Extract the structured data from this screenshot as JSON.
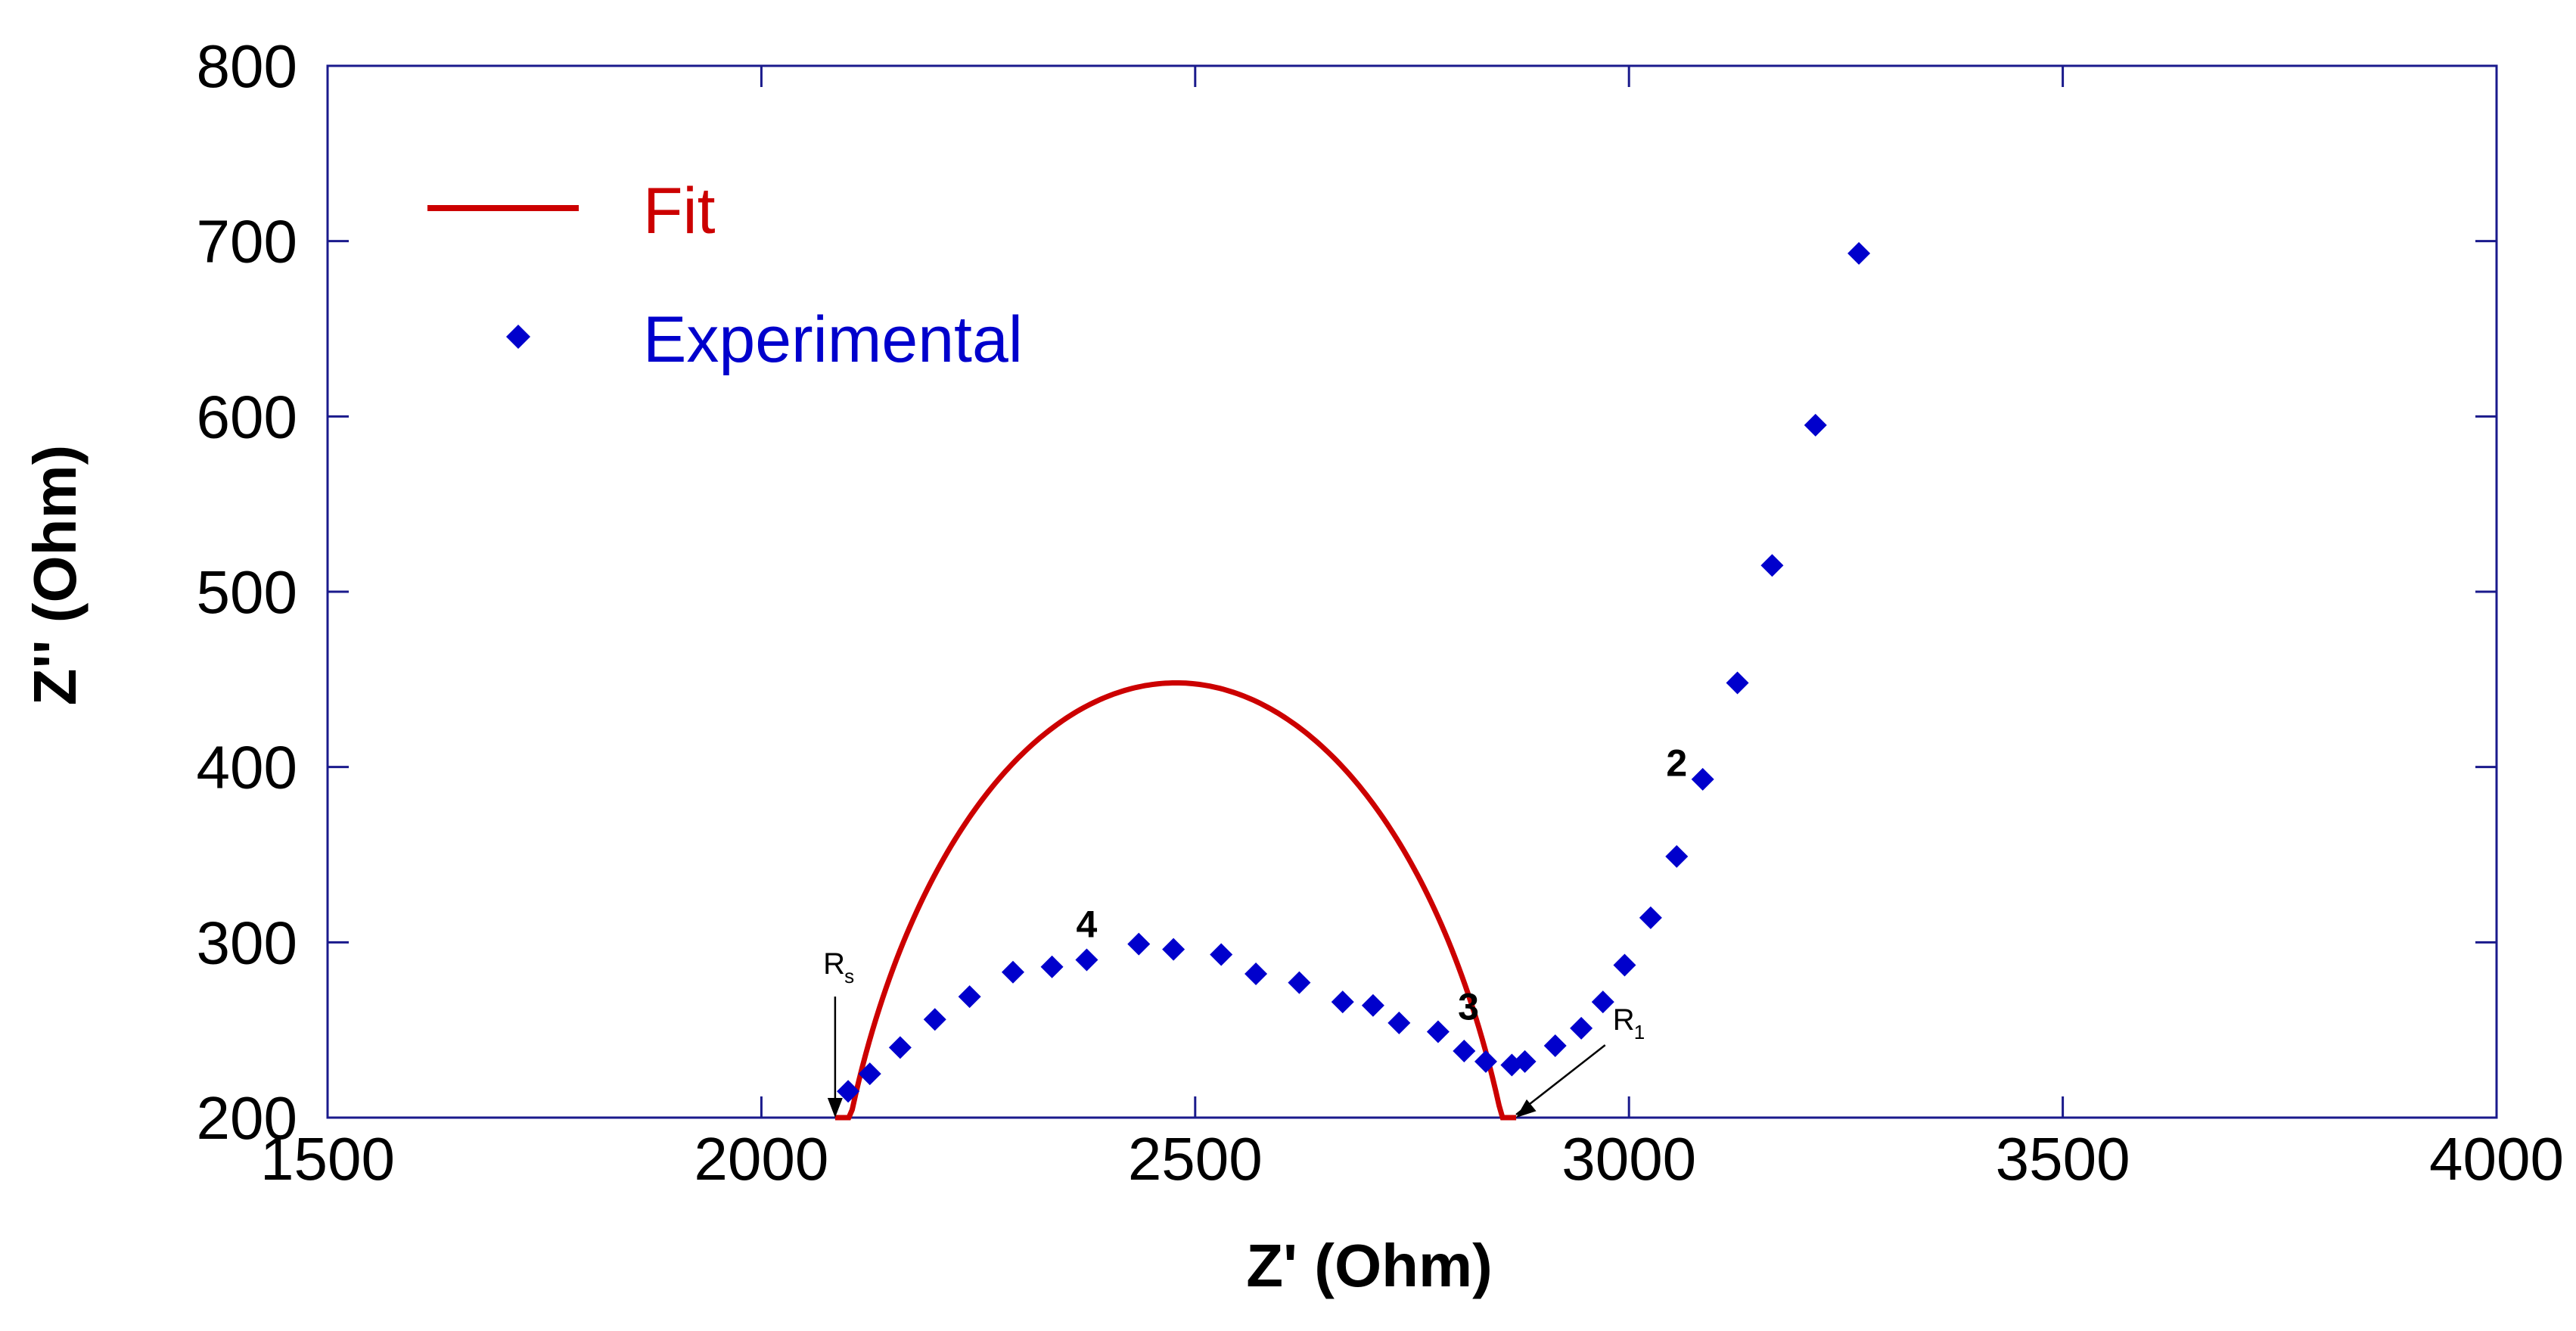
{
  "chart_data": {
    "type": "scatter",
    "title": "",
    "xlabel": "Z' (Ohm)",
    "ylabel": "Z'' (Ohm)",
    "xlim": [
      1500,
      4000
    ],
    "ylim": [
      200,
      800
    ],
    "xticks": [
      1500,
      2000,
      2500,
      3000,
      3500,
      4000
    ],
    "yticks": [
      200,
      300,
      400,
      500,
      600,
      700,
      800
    ],
    "grid": false,
    "legend": {
      "position": "top-left",
      "entries": [
        {
          "label": "Fit",
          "type": "line",
          "color": "#cc0000"
        },
        {
          "label": "Experimental",
          "type": "marker",
          "marker": "diamond",
          "color": "#0000cc"
        }
      ]
    },
    "series": [
      {
        "name": "Experimental",
        "type": "scatter",
        "marker": "diamond",
        "color": "#0000cc",
        "x": [
          2100,
          2125,
          2160,
          2200,
          2240,
          2290,
          2335,
          2375,
          2435,
          2475,
          2530,
          2570,
          2620,
          2670,
          2705,
          2735,
          2780,
          2810,
          2835,
          2865,
          2880,
          2915,
          2945,
          2970,
          2995,
          3025,
          3055,
          3085,
          3125,
          3165,
          3215,
          3265
        ],
        "y": [
          215,
          225,
          240,
          256,
          269,
          283,
          286,
          290,
          299,
          296,
          293,
          282,
          277,
          266,
          264,
          254,
          249,
          238,
          232,
          230,
          232,
          241,
          251,
          266,
          287,
          314,
          349,
          393,
          448,
          515,
          595,
          693
        ]
      },
      {
        "name": "Fit",
        "type": "line",
        "color": "#cc0000",
        "model": "semicircle",
        "center_x": 2478,
        "center_y": 40,
        "radius": 408,
        "x_range": [
          2085,
          2870
        ]
      }
    ],
    "annotations": [
      {
        "text": "4",
        "x": 2375,
        "y": 303
      },
      {
        "text": "3",
        "x": 2815,
        "y": 256
      },
      {
        "text": "2",
        "x": 3055,
        "y": 395
      }
    ],
    "markers": [
      {
        "label": "R",
        "subscript": "s",
        "x": 2085,
        "y": 200,
        "label_x": 2080,
        "label_y": 282
      },
      {
        "label": "R",
        "subscript": "1",
        "x": 2870,
        "y": 200,
        "label_x": 2990,
        "label_y": 250
      }
    ]
  }
}
